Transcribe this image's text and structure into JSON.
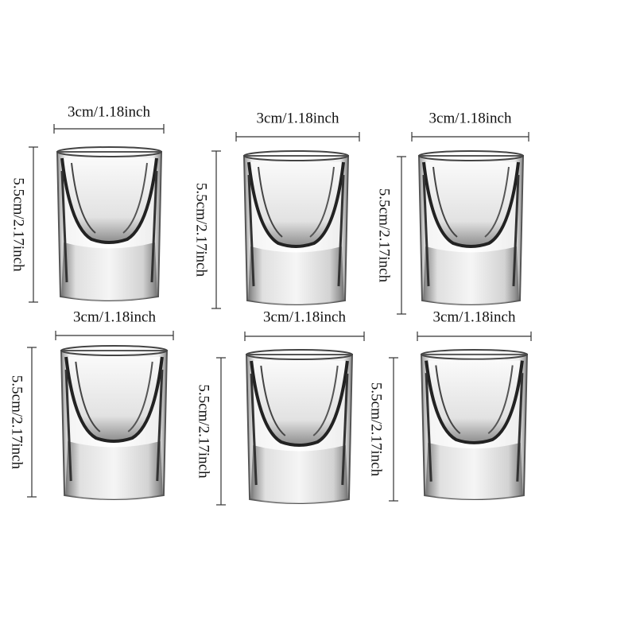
{
  "glasses": [
    {
      "width_label": "3cm/1.18inch",
      "height_label": "5.5cm/2.17inch"
    },
    {
      "width_label": "3cm/1.18inch",
      "height_label": "5.5cm/2.17inch"
    },
    {
      "width_label": "3cm/1.18inch",
      "height_label": "5.5cm/2.17inch"
    },
    {
      "width_label": "3cm/1.18inch",
      "height_label": "5.5cm/2.17inch"
    },
    {
      "width_label": "3cm/1.18inch",
      "height_label": "5.5cm/2.17inch"
    },
    {
      "width_label": "3cm/1.18inch",
      "height_label": "5.5cm/2.17inch"
    }
  ]
}
